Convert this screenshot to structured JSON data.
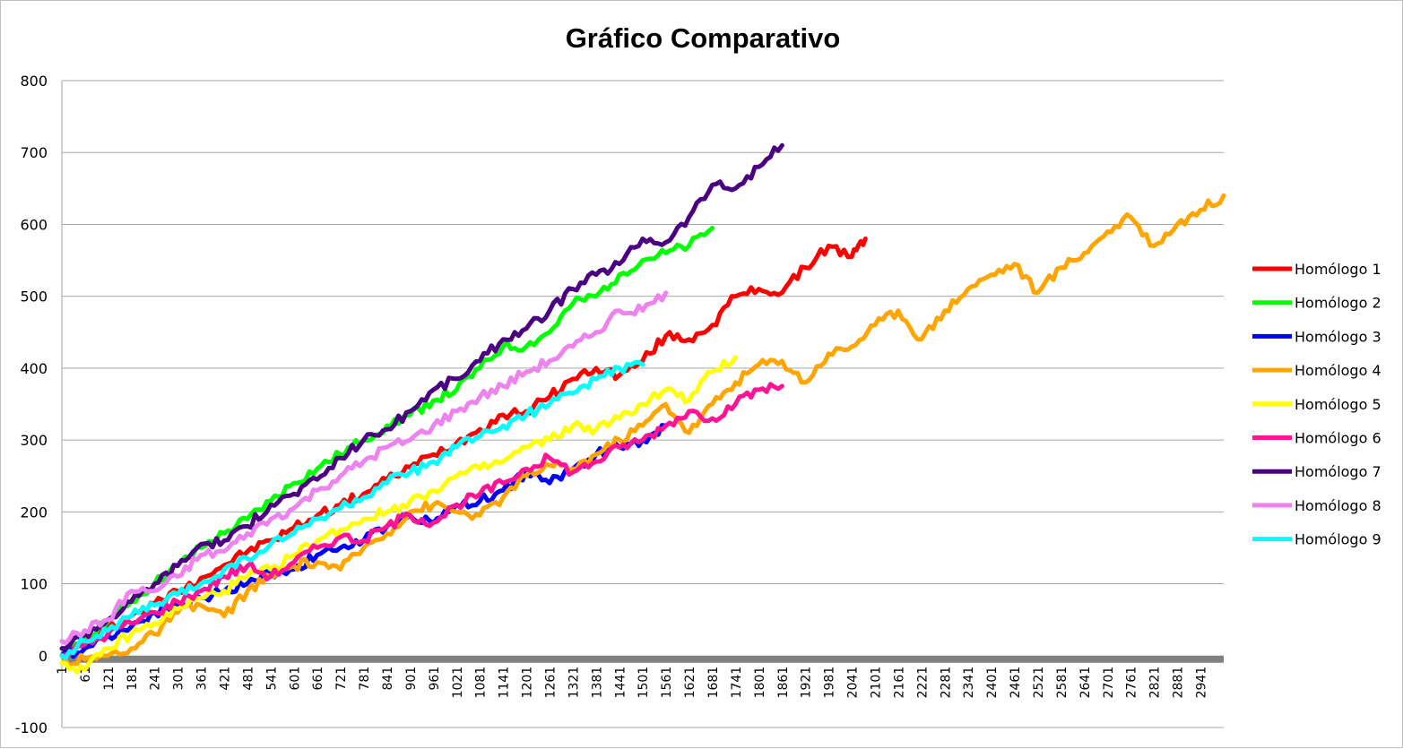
{
  "chart_data": {
    "type": "line",
    "title": "Gráfico Comparativo",
    "xlabel": "",
    "ylabel": "",
    "ylim": [
      -100,
      800
    ],
    "yticks": [
      -100,
      0,
      100,
      200,
      300,
      400,
      500,
      600,
      700,
      800
    ],
    "xlim": [
      1,
      3000
    ],
    "xtick_labels": [
      "1",
      "61",
      "121",
      "181",
      "241",
      "301",
      "361",
      "421",
      "481",
      "541",
      "601",
      "661",
      "721",
      "781",
      "841",
      "901",
      "961",
      "1021",
      "1081",
      "1141",
      "1201",
      "1261",
      "1321",
      "1381",
      "1441",
      "1501",
      "1561",
      "1621",
      "1681",
      "1741",
      "1801",
      "1861",
      "1921",
      "1981",
      "2041",
      "2101",
      "2161",
      "2221",
      "2281",
      "2341",
      "2401",
      "2461",
      "2521",
      "2581",
      "2641",
      "2701",
      "2761",
      "2821",
      "2881",
      "2941"
    ],
    "grid": true,
    "legend_position": "right",
    "series": [
      {
        "name": "Homólogo 1",
        "color": "#ff0000",
        "x": [
          1,
          60,
          120,
          180,
          240,
          300,
          360,
          420,
          480,
          540,
          600,
          660,
          720,
          780,
          840,
          900,
          960,
          1020,
          1080,
          1140,
          1200,
          1260,
          1320,
          1380,
          1440,
          1500,
          1560,
          1620,
          1680,
          1740,
          1800,
          1860,
          1920,
          1980,
          2040,
          2075
        ],
        "y": [
          0,
          18,
          38,
          55,
          72,
          90,
          108,
          126,
          145,
          160,
          178,
          195,
          210,
          225,
          245,
          262,
          280,
          296,
          315,
          335,
          340,
          360,
          385,
          400,
          390,
          410,
          445,
          440,
          460,
          500,
          510,
          505,
          540,
          570,
          555,
          580
        ]
      },
      {
        "name": "Homólogo 2",
        "color": "#00ff00",
        "x": [
          1,
          60,
          120,
          180,
          240,
          300,
          360,
          420,
          480,
          540,
          600,
          660,
          720,
          780,
          840,
          900,
          960,
          1020,
          1080,
          1140,
          1200,
          1260,
          1320,
          1380,
          1440,
          1500,
          1560,
          1620,
          1680
        ],
        "y": [
          0,
          25,
          50,
          75,
          100,
          125,
          150,
          170,
          190,
          215,
          240,
          260,
          280,
          300,
          320,
          335,
          355,
          370,
          400,
          430,
          430,
          450,
          490,
          500,
          530,
          550,
          560,
          570,
          595
        ]
      },
      {
        "name": "Homólogo 3",
        "color": "#0000ff",
        "x": [
          1,
          60,
          120,
          180,
          240,
          300,
          360,
          420,
          480,
          540,
          600,
          660,
          720,
          780,
          840,
          900,
          960,
          1020,
          1080,
          1140,
          1200,
          1260,
          1320,
          1380,
          1440,
          1500,
          1560
        ],
        "y": [
          0,
          10,
          28,
          40,
          60,
          70,
          80,
          90,
          100,
          115,
          120,
          140,
          150,
          160,
          180,
          195,
          185,
          210,
          215,
          230,
          255,
          240,
          260,
          280,
          290,
          300,
          320
        ]
      },
      {
        "name": "Homólogo 4",
        "color": "#ffa500",
        "x": [
          1,
          60,
          120,
          180,
          240,
          300,
          360,
          420,
          480,
          540,
          600,
          660,
          720,
          780,
          840,
          900,
          960,
          1020,
          1080,
          1140,
          1200,
          1260,
          1320,
          1380,
          1440,
          1500,
          1560,
          1620,
          1680,
          1740,
          1800,
          1860,
          1920,
          1980,
          2040,
          2100,
          2160,
          2220,
          2280,
          2340,
          2400,
          2460,
          2520,
          2580,
          2640,
          2700,
          2760,
          2820,
          2880,
          2940,
          3000
        ],
        "y": [
          -10,
          -5,
          0,
          10,
          30,
          60,
          70,
          55,
          90,
          110,
          125,
          130,
          120,
          150,
          170,
          200,
          210,
          200,
          195,
          220,
          250,
          265,
          260,
          280,
          300,
          320,
          350,
          310,
          350,
          380,
          405,
          410,
          380,
          420,
          430,
          460,
          480,
          440,
          480,
          510,
          530,
          545,
          505,
          540,
          560,
          590,
          610,
          570,
          600,
          620,
          640
        ]
      },
      {
        "name": "Homólogo 5",
        "color": "#ffff00",
        "x": [
          1,
          60,
          120,
          180,
          240,
          300,
          360,
          420,
          480,
          540,
          600,
          660,
          720,
          780,
          840,
          900,
          960,
          1020,
          1080,
          1140,
          1200,
          1260,
          1320,
          1380,
          1440,
          1500,
          1560,
          1620,
          1680,
          1740
        ],
        "y": [
          -10,
          -20,
          10,
          30,
          45,
          65,
          80,
          90,
          110,
          120,
          140,
          160,
          175,
          190,
          200,
          215,
          230,
          250,
          260,
          270,
          290,
          300,
          320,
          315,
          330,
          350,
          370,
          355,
          395,
          415
        ]
      },
      {
        "name": "Homólogo 6",
        "color": "#ff1493",
        "x": [
          1,
          60,
          120,
          180,
          240,
          300,
          360,
          420,
          480,
          540,
          600,
          660,
          720,
          780,
          840,
          900,
          960,
          1020,
          1080,
          1140,
          1200,
          1260,
          1320,
          1380,
          1440,
          1500,
          1560,
          1620,
          1680,
          1740,
          1800,
          1860
        ],
        "y": [
          0,
          15,
          30,
          45,
          60,
          75,
          90,
          110,
          125,
          110,
          130,
          150,
          165,
          160,
          180,
          195,
          185,
          210,
          225,
          240,
          260,
          275,
          255,
          270,
          290,
          300,
          320,
          340,
          330,
          350,
          370,
          375
        ]
      },
      {
        "name": "Homólogo 7",
        "color": "#4b0082",
        "x": [
          1,
          60,
          120,
          180,
          240,
          300,
          360,
          420,
          480,
          540,
          600,
          660,
          720,
          780,
          840,
          900,
          960,
          1020,
          1080,
          1140,
          1200,
          1260,
          1320,
          1380,
          1440,
          1500,
          1560,
          1620,
          1680,
          1740,
          1800,
          1860
        ],
        "y": [
          10,
          30,
          50,
          75,
          100,
          125,
          155,
          160,
          180,
          210,
          225,
          245,
          275,
          300,
          315,
          340,
          370,
          385,
          410,
          440,
          455,
          480,
          510,
          530,
          545,
          580,
          575,
          610,
          655,
          650,
          680,
          710
        ]
      },
      {
        "name": "Homólogo 8",
        "color": "#ee82ee",
        "x": [
          1,
          60,
          120,
          180,
          240,
          300,
          360,
          420,
          480,
          540,
          600,
          660,
          720,
          780,
          840,
          900,
          960,
          1020,
          1080,
          1140,
          1200,
          1260,
          1320,
          1380,
          1440,
          1500,
          1560
        ],
        "y": [
          20,
          35,
          50,
          90,
          90,
          110,
          140,
          145,
          170,
          190,
          205,
          230,
          250,
          270,
          290,
          300,
          320,
          340,
          360,
          375,
          395,
          410,
          430,
          450,
          480,
          480,
          505
        ]
      },
      {
        "name": "Homólogo 9",
        "color": "#00ffff",
        "x": [
          1,
          60,
          120,
          180,
          240,
          300,
          360,
          420,
          480,
          540,
          600,
          660,
          720,
          780,
          840,
          900,
          960,
          1020,
          1080,
          1140,
          1200,
          1260,
          1320,
          1380,
          1440,
          1500
        ],
        "y": [
          0,
          20,
          35,
          55,
          70,
          85,
          100,
          120,
          135,
          155,
          170,
          190,
          205,
          220,
          240,
          255,
          270,
          290,
          305,
          320,
          335,
          350,
          365,
          385,
          400,
          405
        ]
      }
    ]
  }
}
